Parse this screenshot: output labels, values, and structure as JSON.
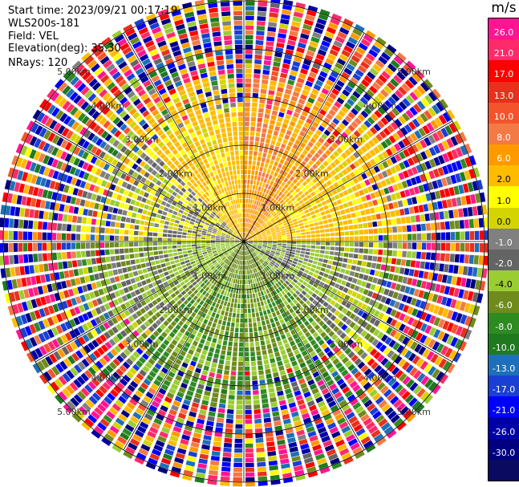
{
  "info": {
    "start_time": "Start time: 2023/09/21 00:17:19",
    "instrument": "WLS200s-181",
    "field": "Field: VEL",
    "elevation": "Elevation(deg): 35.30",
    "nrays": "NRays: 120"
  },
  "chart_data": {
    "type": "heatmap",
    "projection": "polar-ppi",
    "field": "VEL",
    "units": "m/s",
    "elevation_deg": 35.3,
    "nrays": 120,
    "range_rings_km": [
      1.0,
      2.0,
      3.0,
      4.0,
      5.0
    ],
    "range_ring_labels": [
      "1.00km",
      "2.00km",
      "3.00km",
      "4.00km",
      "5.00km"
    ],
    "max_range_km": 5.0,
    "grid": true,
    "radial_lines_deg": [
      0,
      30,
      60,
      90,
      120,
      150,
      180,
      210,
      240,
      270,
      300,
      330
    ],
    "colorbar": {
      "placement": "right",
      "unit_label": "m/s",
      "tick_labels": [
        "26.0",
        "21.0",
        "17.0",
        "13.0",
        "10.0",
        "8.0",
        "6.0",
        "2.0",
        "1.0",
        "0.0",
        "-1.0",
        "-2.0",
        "-4.0",
        "-6.0",
        "-8.0",
        "-10.0",
        "-13.0",
        "-17.0",
        "-21.0",
        "-26.0",
        "-30.0"
      ],
      "colors": [
        "#ff1493",
        "#ff2a6a",
        "#ff0000",
        "#e8301c",
        "#f4542c",
        "#f47a45",
        "#ff9900",
        "#ffbb00",
        "#ffff00",
        "#d4d400",
        "#808080",
        "#646464",
        "#9acd32",
        "#6e8b1c",
        "#2e8b22",
        "#1f7a1f",
        "#1e6fba",
        "#1a3fd4",
        "#0000ff",
        "#0000a8",
        "#000080",
        "#0a0a60"
      ],
      "bounds": [
        30,
        26,
        21,
        17,
        13,
        10,
        8,
        6,
        2,
        1,
        0,
        -1,
        -2,
        -4,
        -6,
        -8,
        -10,
        -13,
        -17,
        -21,
        -26,
        -30
      ]
    },
    "sectors": [
      {
        "from_deg": 315,
        "to_deg": 360,
        "velocity_ms": 3
      },
      {
        "from_deg": 0,
        "to_deg": 45,
        "velocity_ms": 7
      },
      {
        "from_deg": 45,
        "to_deg": 90,
        "velocity_ms": 3
      },
      {
        "from_deg": 90,
        "to_deg": 135,
        "velocity_ms": -2
      },
      {
        "from_deg": 135,
        "to_deg": 225,
        "velocity_ms": -5
      },
      {
        "from_deg": 225,
        "to_deg": 270,
        "velocity_ms": -3
      },
      {
        "from_deg": 270,
        "to_deg": 315,
        "velocity_ms": 0
      }
    ],
    "noise_region": {
      "from_km": 3.5,
      "to_km": 5.0,
      "description_value": "random velocities across full colorbar range"
    }
  }
}
